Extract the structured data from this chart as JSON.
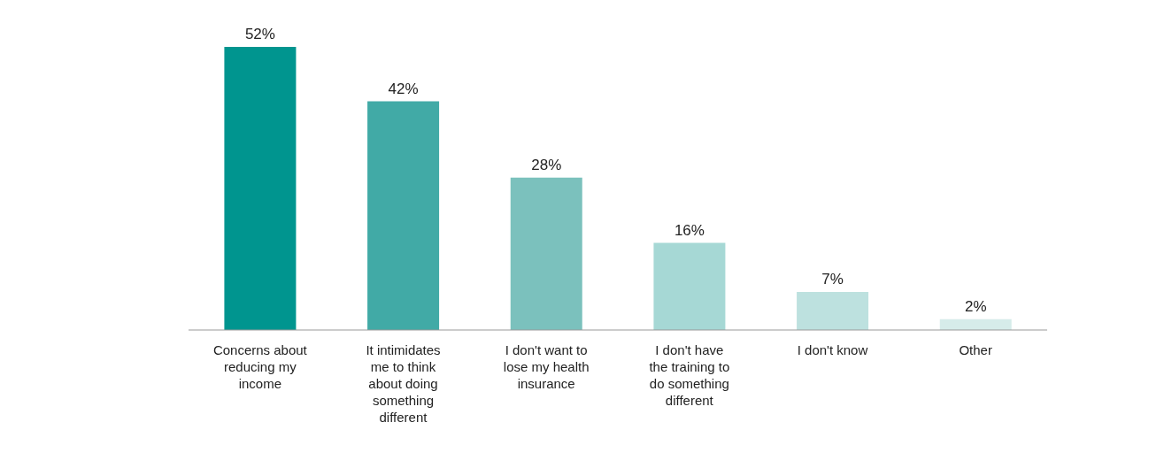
{
  "chart_data": {
    "type": "bar",
    "categories": [
      "Concerns about reducing my income",
      "It intimidates me to think about doing something different",
      "I don't want to lose my health insurance",
      "I don't have the training to do something different",
      "I don't know",
      "Other"
    ],
    "values": [
      52,
      42,
      28,
      16,
      7,
      2
    ],
    "colors": [
      "#00958f",
      "#41aaa6",
      "#7bc1bd",
      "#a6d8d5",
      "#bde1df",
      "#d6ecea"
    ],
    "value_labels": [
      "52%",
      "42%",
      "28%",
      "16%",
      "7%",
      "2%"
    ]
  }
}
